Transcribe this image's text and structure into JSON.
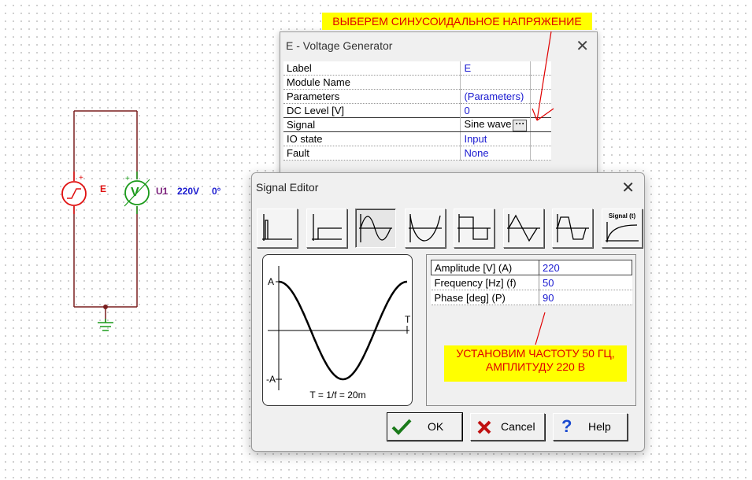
{
  "circuit": {
    "source_label": "E",
    "meter_label": "U1",
    "meter_value": "220V",
    "meter_phase": "0°",
    "meter_symbol": "V",
    "colors": {
      "wire": "#7a1f1f",
      "source": "#e01010",
      "meter": "#1a9a1a",
      "value": "#1a1ad0"
    }
  },
  "annotations": {
    "top_note": "ВЫБЕРЕМ СИНУСОИДАЛЬНОЕ НАПРЯЖЕНИЕ",
    "bottom_note_line1": "УСТАНОВИМ ЧАСТОТУ 50 ГЦ,",
    "bottom_note_line2": "АМПЛИТУДУ 220 В",
    "color_bg": "#ffff00",
    "color_text": "#e00000"
  },
  "voltage_generator": {
    "title": "E - Voltage Generator",
    "close_glyph": "✕",
    "rows": [
      {
        "key": "Label",
        "value": "E"
      },
      {
        "key": "Module Name",
        "value": ""
      },
      {
        "key": "Parameters",
        "value": "(Parameters)"
      },
      {
        "key": "DC Level [V]",
        "value": "0"
      },
      {
        "key": "Signal",
        "value": "Sine wave"
      },
      {
        "key": "IO state",
        "value": "Input"
      },
      {
        "key": "Fault",
        "value": "None"
      }
    ],
    "dots_label": "···"
  },
  "signal_editor": {
    "title": "Signal Editor",
    "close_glyph": "✕",
    "signal_buttons": [
      {
        "name": "pulse",
        "active": false
      },
      {
        "name": "step",
        "active": false
      },
      {
        "name": "sine",
        "active": true
      },
      {
        "name": "rectified-sine",
        "active": false
      },
      {
        "name": "square",
        "active": false
      },
      {
        "name": "triangle",
        "active": false
      },
      {
        "name": "trapezoid",
        "active": false
      },
      {
        "name": "custom",
        "active": false,
        "label": "Signal (t)"
      }
    ],
    "preview": {
      "label_a": "A",
      "label_neg_a": "-A",
      "label_t": "T",
      "caption": "T = 1/f = 20m"
    },
    "params": [
      {
        "key": "Amplitude [V] (A)",
        "value": "220"
      },
      {
        "key": "Frequency [Hz] (f)",
        "value": "50"
      },
      {
        "key": "Phase [deg] (P)",
        "value": "90"
      }
    ],
    "buttons": {
      "ok": "OK",
      "cancel": "Cancel",
      "help": "Help"
    }
  }
}
